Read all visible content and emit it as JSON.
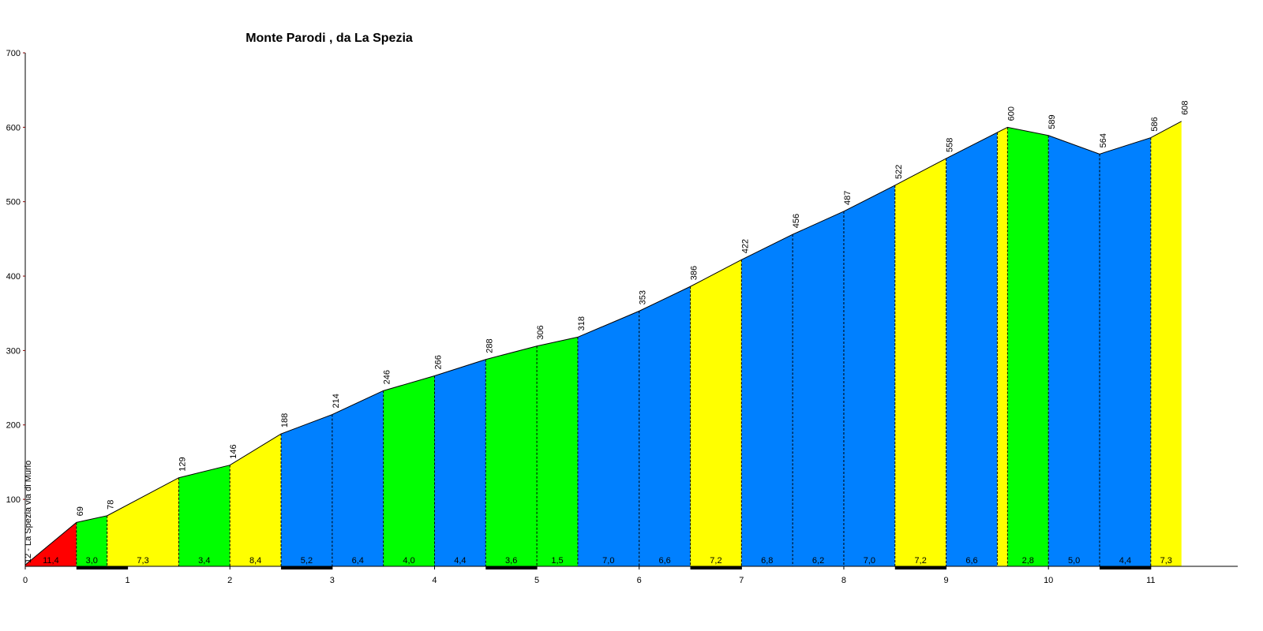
{
  "chart_data": {
    "type": "profile",
    "title": "Monte Parodi , da La Spezia",
    "x": [
      0,
      0.5,
      0.8,
      1.5,
      2,
      2.5,
      3,
      3.5,
      4,
      4.5,
      5,
      5.4,
      6,
      6.5,
      7,
      7.5,
      8,
      8.5,
      9,
      9.5,
      9.6,
      10,
      10.5,
      11,
      11.3
    ],
    "values": [
      12,
      69,
      78,
      129,
      146,
      188,
      214,
      246,
      266,
      288,
      306,
      318,
      353,
      386,
      422,
      456,
      487,
      522,
      558,
      593,
      600,
      589,
      564,
      586,
      608
    ],
    "value_labels": [
      "12 - La Spezia via di Murlo",
      "69",
      "78",
      "129",
      "146",
      "188",
      "214",
      "246",
      "266",
      "288",
      "306",
      "318",
      "353",
      "386",
      "422",
      "456",
      "487",
      "522",
      "558",
      null,
      "600",
      "589",
      "564",
      "586",
      "608"
    ],
    "grades": [
      11.4,
      3.0,
      7.3,
      3.4,
      8.4,
      5.2,
      6.4,
      4.0,
      4.4,
      3.6,
      1.5,
      7.0,
      6.6,
      7.2,
      6.8,
      6.2,
      7.0,
      7.2,
      6.6,
      null,
      2.8,
      5.0,
      4.4,
      7.3
    ],
    "grade_labels": [
      "11,4",
      "3,0",
      "7,3",
      "3,4",
      "8,4",
      "5,2",
      "6,4",
      "4,0",
      "4,4",
      "3,6",
      "1,5",
      "7,0",
      "6,6",
      "7,2",
      "6,8",
      "6,2",
      "7,0",
      "7,2",
      "6,6",
      null,
      "2,8",
      "5,0",
      "4,4",
      "7,3"
    ],
    "segment_colors": [
      "#ff0000",
      "#00ff00",
      "#ffff00",
      "#00ff00",
      "#ffff00",
      "#0080ff",
      "#0080ff",
      "#00ff00",
      "#0080ff",
      "#00ff00",
      "#00ff00",
      "#0080ff",
      "#0080ff",
      "#ffff00",
      "#0080ff",
      "#0080ff",
      "#0080ff",
      "#ffff00",
      "#0080ff",
      "#ffff00",
      "#00ff00",
      "#0080ff",
      "#0080ff",
      "#ffff00"
    ],
    "xlim": [
      0,
      11.85
    ],
    "ylim": [
      10,
      700
    ],
    "xticks": [
      0,
      1,
      2,
      3,
      4,
      5,
      6,
      7,
      8,
      9,
      10,
      11
    ],
    "yticks": [
      100,
      200,
      300,
      400,
      500,
      600,
      700
    ]
  }
}
